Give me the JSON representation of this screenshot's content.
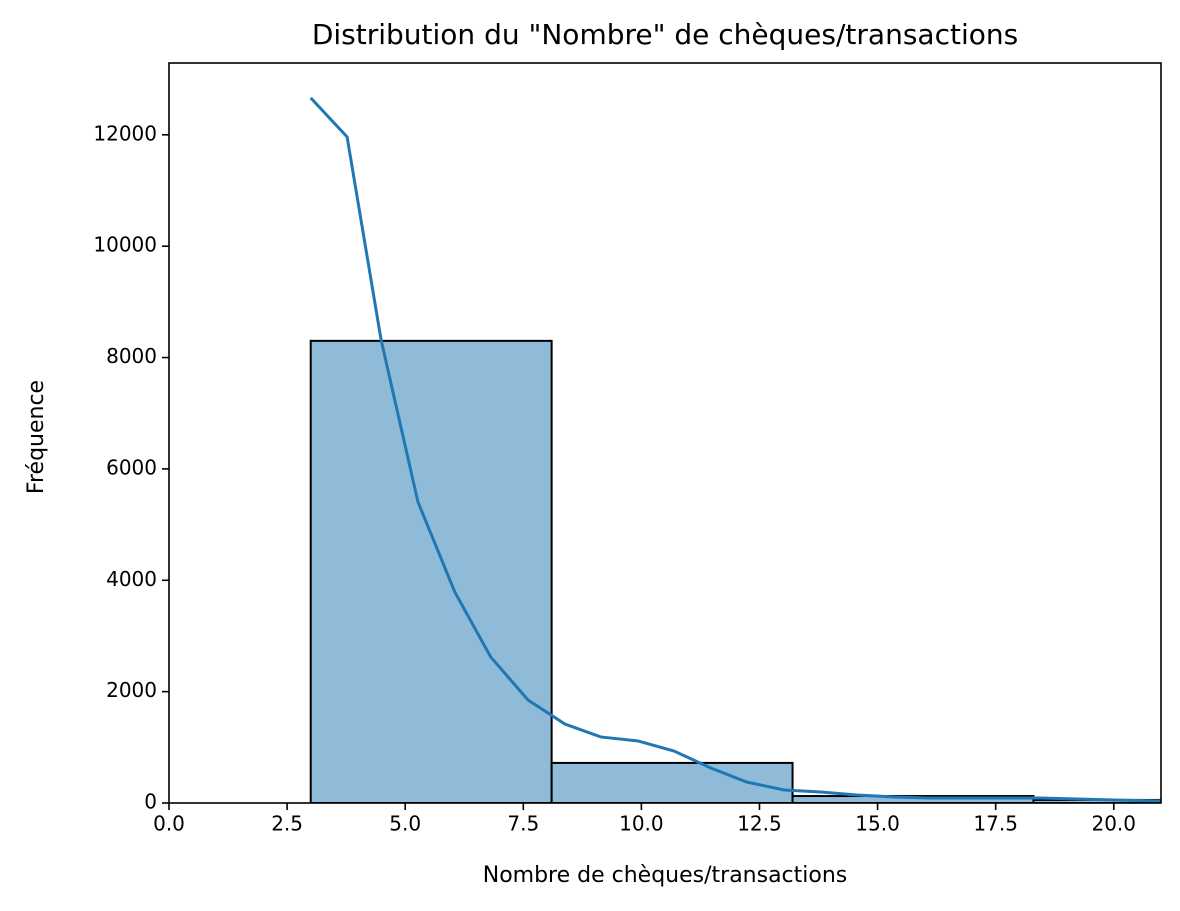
{
  "chart_data": {
    "type": "histogram",
    "title": "Distribution du \"Nombre\" de chèques/transactions",
    "xlabel": "Nombre de chèques/transactions",
    "ylabel": "Fréquence",
    "bins": [
      3,
      8.1,
      13.2,
      18.3,
      23.4
    ],
    "values": [
      8300,
      720,
      125,
      55
    ],
    "color": "#8fbbd9",
    "edgecolor": "#000000",
    "kde": {
      "color": "#1f77b4",
      "x": [
        3.0,
        3.77,
        4.49,
        5.27,
        6.05,
        6.81,
        7.6,
        8.38,
        9.14,
        9.93,
        10.69,
        11.47,
        12.23,
        13.02,
        13.8,
        14.56,
        15.34,
        16.1,
        16.89,
        17.67,
        18.43,
        19.22,
        20.0,
        21.0
      ],
      "values": [
        12664,
        11963,
        8317,
        5407,
        3790,
        2623,
        1850,
        1419,
        1186,
        1114,
        934,
        629,
        377,
        234,
        198,
        144,
        108,
        90,
        90,
        90,
        90,
        72,
        54,
        36
      ]
    },
    "xlim": [
      0,
      21
    ],
    "ylim": [
      0,
      13290
    ],
    "xticks": [
      {
        "value": 0,
        "label": "0.0"
      },
      {
        "value": 2.5,
        "label": "2.5"
      },
      {
        "value": 5,
        "label": "5.0"
      },
      {
        "value": 7.5,
        "label": "7.5"
      },
      {
        "value": 10,
        "label": "10.0"
      },
      {
        "value": 12.5,
        "label": "12.5"
      },
      {
        "value": 15,
        "label": "15.0"
      },
      {
        "value": 17.5,
        "label": "17.5"
      },
      {
        "value": 20,
        "label": "20.0"
      }
    ],
    "yticks": [
      0,
      2000,
      4000,
      6000,
      8000,
      10000,
      12000
    ],
    "grid": false
  }
}
